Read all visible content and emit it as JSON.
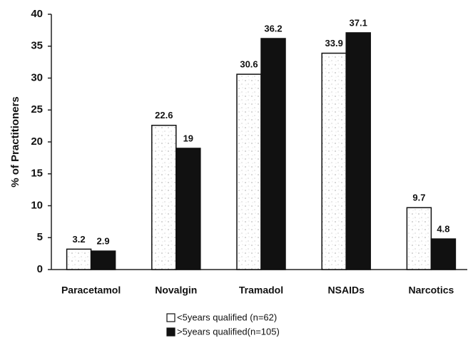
{
  "chart_data": {
    "type": "bar",
    "ylabel": "% of Practitioners",
    "categories": [
      "Paracetamol",
      "Novalgin",
      "Tramadol",
      "NSAIDs",
      "Narcotics"
    ],
    "series": [
      {
        "name": "<5years qualified (n=62)",
        "color": "#ffffff",
        "values": [
          3.2,
          22.6,
          30.6,
          33.9,
          9.7
        ]
      },
      {
        "name": ">5years qualified(n=105)",
        "color": "#111111",
        "values": [
          2.9,
          19,
          36.2,
          37.1,
          4.8
        ]
      }
    ],
    "ylim": [
      0,
      40
    ],
    "yticks": [
      0,
      5,
      10,
      15,
      20,
      25,
      30,
      35,
      40
    ]
  }
}
